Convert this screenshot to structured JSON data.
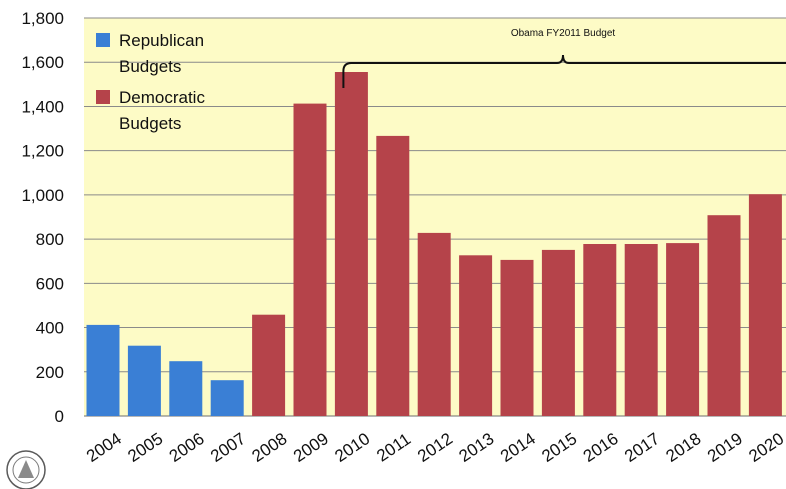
{
  "chart_data": {
    "type": "bar",
    "title": "",
    "xlabel": "",
    "ylabel": "",
    "ylim": [
      0,
      1800
    ],
    "yticks": [
      0,
      200,
      400,
      600,
      800,
      1000,
      1200,
      1400,
      1600,
      1800
    ],
    "ytick_labels": [
      "0",
      "200",
      "400",
      "600",
      "800",
      "1,000",
      "1,200",
      "1,400",
      "1,600",
      "1,800"
    ],
    "grid": true,
    "legend_position": "top-left",
    "categories": [
      "2004",
      "2005",
      "2006",
      "2007",
      "2008",
      "2009",
      "2010",
      "2011",
      "2012",
      "2013",
      "2014",
      "2015",
      "2016",
      "2017",
      "2018",
      "2019",
      "2020"
    ],
    "series": [
      {
        "name": "Republican Budgets",
        "color": "#3a7fd5",
        "values": [
          412,
          318,
          248,
          162,
          null,
          null,
          null,
          null,
          null,
          null,
          null,
          null,
          null,
          null,
          null,
          null,
          null
        ]
      },
      {
        "name": "Democratic Budgets",
        "color": "#b5434a",
        "values": [
          null,
          null,
          null,
          null,
          458,
          1413,
          1556,
          1267,
          828,
          727,
          706,
          751,
          778,
          778,
          782,
          908,
          1003
        ]
      }
    ],
    "legend": [
      {
        "line1": "Republican",
        "line2": "Budgets",
        "color": "#3a7fd5"
      },
      {
        "line1": "Democratic",
        "line2": "Budgets",
        "color": "#b5434a"
      }
    ],
    "annotations": [
      {
        "text": "Obama FY2011 Budget",
        "from": "2010",
        "to": "2020"
      }
    ],
    "plot_background": "#fdfbc6",
    "grid_color": "#8a8a8a"
  }
}
